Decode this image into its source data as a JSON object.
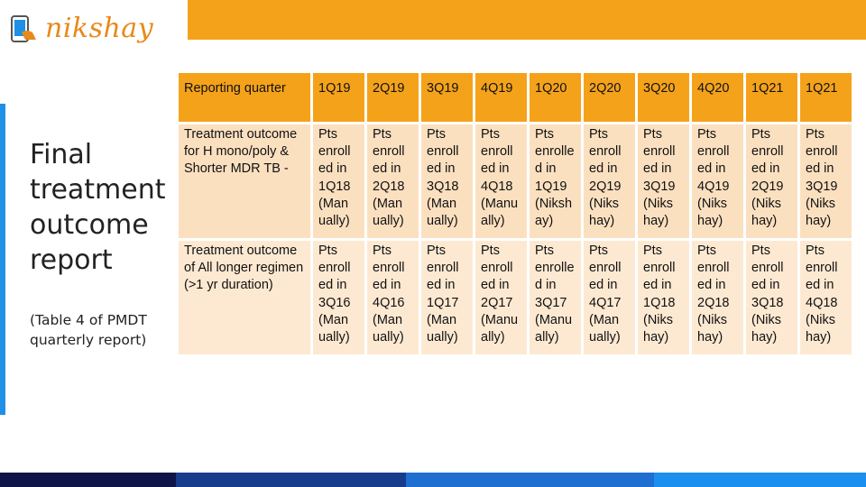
{
  "logo": {
    "text": "nikshay",
    "icon": "phone-hand-icon"
  },
  "title": "Final treatment outcome report",
  "subtitle": "(Table 4 of PMDT quarterly report)",
  "colors": {
    "accent_orange": "#f5a21b",
    "row1_bg": "#fbe0c0",
    "row2_bg": "#fde9d2",
    "left_bar": "#1e90e6",
    "footer": [
      "#0e1447",
      "#173c8c",
      "#1e6fd0",
      "#1b8ff0"
    ]
  },
  "table": {
    "header": [
      "Reporting quarter",
      "1Q19",
      "2Q19",
      "3Q19",
      "4Q19",
      "1Q20",
      "2Q20",
      "3Q20",
      "4Q20",
      "1Q21",
      "1Q21"
    ],
    "rows": [
      [
        "Treatment outcome for H mono/poly & Shorter MDR TB -",
        "Pts enroll ed in 1Q18 (Man ually)",
        "Pts enroll ed in 2Q18 (Man ually)",
        "Pts enroll ed in 3Q18 (Man ually)",
        "Pts enroll ed in 4Q18 (Manu ally)",
        "Pts enrolle d in 1Q19 (Niksh ay)",
        "Pts enroll ed in 2Q19 (Niks hay)",
        "Pts enroll ed in 3Q19 (Niks hay)",
        "Pts enroll ed in 4Q19 (Niks hay)",
        "Pts enroll ed in 2Q19 (Niks hay)",
        "Pts enroll ed in 3Q19 (Niks hay)"
      ],
      [
        "Treatment outcome of All longer regimen (>1 yr duration)",
        "Pts enroll ed in 3Q16 (Man ually)",
        "Pts enroll ed in 4Q16 (Man ually)",
        "Pts enroll ed in 1Q17 (Man ually)",
        "Pts enroll ed in 2Q17 (Manu ally)",
        "Pts enrolle d in 3Q17 (Manu ally)",
        "Pts enroll ed in 4Q17 (Man ually)",
        "Pts enroll ed in 1Q18 (Niks hay)",
        "Pts enroll ed in 2Q18 (Niks hay)",
        "Pts enroll ed in 3Q18 (Niks hay)",
        "Pts enroll ed in 4Q18 (Niks hay)"
      ]
    ]
  }
}
